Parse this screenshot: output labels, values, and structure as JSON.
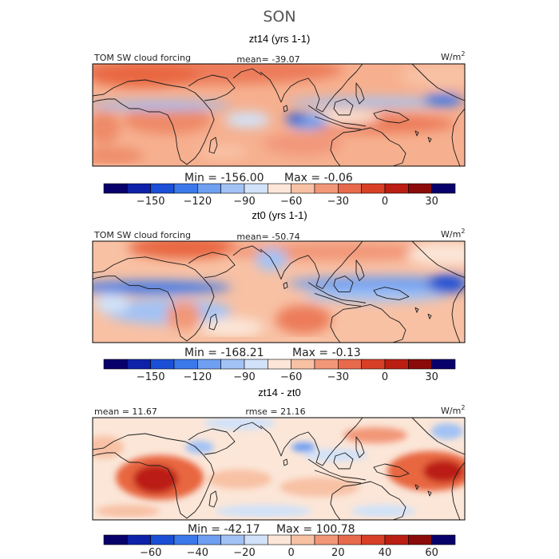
{
  "figure": {
    "title": "SON"
  },
  "colors": {
    "scale": [
      "#08006b",
      "#0d22a8",
      "#1a4fd6",
      "#3b78ea",
      "#6e9ff1",
      "#a2c2f5",
      "#d2e2f8",
      "#fbe6d8",
      "#f8c1a4",
      "#f29778",
      "#e86a4c",
      "#d84026",
      "#bb1e12",
      "#8a0b0a"
    ],
    "coast": "#1a1a1a",
    "frame": "#000000"
  },
  "chart_data": [
    {
      "type": "heatmap",
      "panel_title": "zt14 (yrs 1-1)",
      "left_label": "TOM SW cloud forcing",
      "center_label": "mean= -39.07",
      "units_base": "W/m",
      "units_exp": "2",
      "mean": -39.07,
      "min": -156.0,
      "max": -0.06,
      "min_label": "Min = -156.00",
      "max_label": "Max =  -0.06",
      "colorbar": {
        "levels": [
          -180,
          -165,
          -150,
          -135,
          -120,
          -105,
          -90,
          -75,
          -60,
          -45,
          -30,
          -15,
          0,
          15,
          30,
          45
        ],
        "ticks": [
          -150,
          -120,
          -90,
          -60,
          -30,
          0,
          30
        ],
        "tick_labels": [
          "−150",
          "−120",
          "−90",
          "−60",
          "−30",
          "0",
          "30"
        ]
      }
    },
    {
      "type": "heatmap",
      "panel_title": "zt0 (yrs 1-1)",
      "left_label": "TOM SW cloud forcing",
      "center_label": "mean= -50.74",
      "units_base": "W/m",
      "units_exp": "2",
      "mean": -50.74,
      "min": -168.21,
      "max": -0.13,
      "min_label": "Min = -168.21",
      "max_label": "Max =  -0.13",
      "colorbar": {
        "levels": [
          -180,
          -165,
          -150,
          -135,
          -120,
          -105,
          -90,
          -75,
          -60,
          -45,
          -30,
          -15,
          0,
          15,
          30,
          45
        ],
        "ticks": [
          -150,
          -120,
          -90,
          -60,
          -30,
          0,
          30
        ],
        "tick_labels": [
          "−150",
          "−120",
          "−90",
          "−60",
          "−30",
          "0",
          "30"
        ]
      }
    },
    {
      "type": "heatmap",
      "panel_title": "zt14 - zt0",
      "left_label": "mean =  11.67",
      "center_label": "rmse =  21.16",
      "units_base": "W/m",
      "units_exp": "2",
      "mean": 11.67,
      "rmse": 21.16,
      "min": -42.17,
      "max": 100.78,
      "min_label": "Min = -42.17",
      "max_label": "Max = 100.78",
      "colorbar": {
        "levels": [
          -80,
          -70,
          -60,
          -50,
          -40,
          -30,
          -20,
          -10,
          0,
          10,
          20,
          30,
          40,
          50,
          60,
          70
        ],
        "ticks": [
          -60,
          -40,
          -20,
          0,
          20,
          40,
          60
        ],
        "tick_labels": [
          "−60",
          "−40",
          "−20",
          "0",
          "20",
          "40",
          "60"
        ]
      }
    }
  ]
}
